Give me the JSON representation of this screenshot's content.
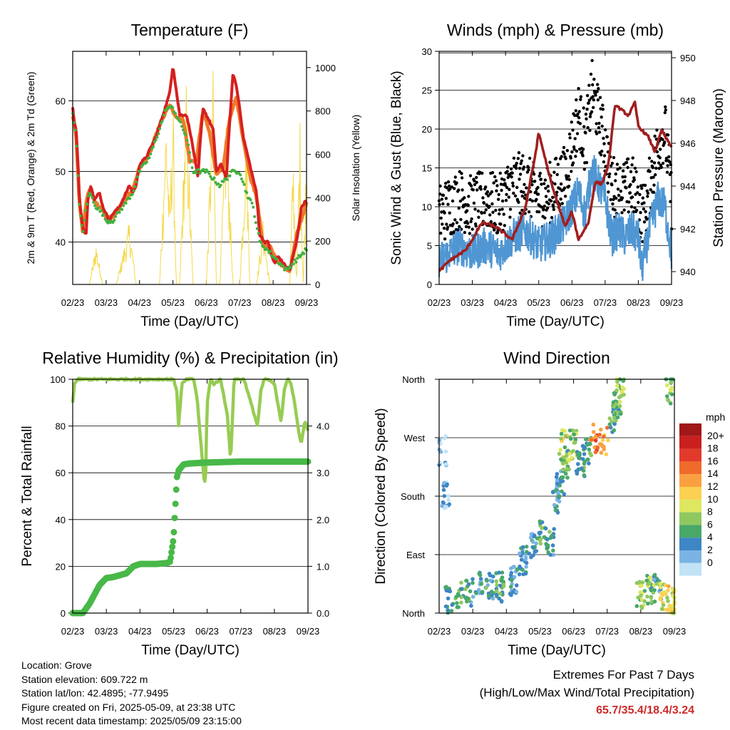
{
  "chart_data": [
    {
      "type": "line",
      "title": "Temperature (F)",
      "xlabel": "Time (Day/UTC)",
      "ylabel": "2m & 9m T (Red, Orange) & 2m Td (Green)",
      "ylabel_right": "Solar Insolation (Yellow)",
      "x_ticks": [
        "02/23",
        "03/23",
        "04/23",
        "05/23",
        "06/23",
        "07/23",
        "08/23",
        "09/23"
      ],
      "ylim": [
        34,
        67
      ],
      "y_ticks": [
        40,
        50,
        60
      ],
      "ylim_right": [
        0,
        1075
      ],
      "y_ticks_right": [
        0,
        200,
        400,
        600,
        800,
        1000
      ],
      "grid": true,
      "series": [
        {
          "name": "2m T",
          "color": "#d62020",
          "x": [
            0,
            0.05,
            0.1,
            0.15,
            0.2,
            0.3,
            0.4,
            0.45,
            0.55,
            0.65,
            0.8,
            0.9,
            1.0,
            1.1,
            1.2,
            1.4,
            1.6,
            1.7,
            1.8,
            1.9,
            2.0,
            2.2,
            2.3,
            2.5,
            2.7,
            2.9,
            3.0,
            3.2,
            3.4,
            3.5,
            3.65,
            3.75,
            3.8,
            3.9,
            4.0,
            4.1,
            4.2,
            4.3,
            4.45,
            4.6,
            4.7,
            4.8,
            4.9,
            5.0,
            5.1,
            5.2,
            5.35,
            5.5,
            5.6,
            5.75,
            5.85,
            5.95,
            6.05,
            6.15,
            6.3,
            6.5,
            6.7,
            6.85,
            7.0
          ],
          "values": [
            59,
            57,
            56,
            52,
            46,
            42,
            41,
            46,
            48,
            46,
            47,
            45,
            44,
            43,
            44,
            45,
            47,
            48,
            47,
            48,
            51,
            52,
            53,
            55,
            58,
            61,
            65,
            58,
            58,
            56,
            52,
            49,
            53,
            59,
            58,
            57,
            56,
            50,
            51,
            49,
            57,
            64,
            62,
            59,
            55,
            53,
            50,
            47,
            41,
            40,
            40,
            38,
            37,
            38,
            37,
            36,
            40,
            45,
            46
          ]
        },
        {
          "name": "9m T",
          "color": "#f07a28",
          "x": [
            0,
            0.1,
            0.2,
            0.3,
            0.4,
            0.5,
            0.7,
            0.9,
            1.0,
            1.2,
            1.5,
            1.8,
            2.0,
            2.3,
            2.6,
            2.9,
            3.1,
            3.3,
            3.5,
            3.7,
            3.9,
            4.1,
            4.3,
            4.5,
            4.7,
            4.9,
            5.1,
            5.3,
            5.5,
            5.7,
            5.9,
            6.1,
            6.3,
            6.5,
            6.7,
            7.0
          ],
          "values": [
            58,
            55.5,
            45.5,
            41.5,
            45.5,
            47.5,
            45.5,
            44.5,
            43.5,
            43.5,
            45.5,
            47.5,
            50.5,
            52.5,
            56.5,
            59.5,
            57.5,
            57.5,
            51.5,
            51.5,
            58.5,
            55.5,
            49.5,
            50.5,
            57.5,
            60.5,
            54.5,
            49.5,
            46.5,
            39.5,
            39.5,
            37.5,
            36.5,
            36,
            41,
            45.5
          ]
        },
        {
          "name": "2m Td",
          "color": "#44b040",
          "x": [
            0,
            0.1,
            0.2,
            0.3,
            0.4,
            0.5,
            0.7,
            0.9,
            1.0,
            1.2,
            1.5,
            1.8,
            2.0,
            2.3,
            2.6,
            2.8,
            3.0,
            3.2,
            3.4,
            3.6,
            3.8,
            4.0,
            4.2,
            4.4,
            4.6,
            4.8,
            5.0,
            5.2,
            5.4,
            5.6,
            5.8,
            6.0,
            6.2,
            6.4,
            6.6,
            6.8,
            7.0
          ],
          "values": [
            58,
            55,
            45,
            41,
            45,
            47,
            45,
            44,
            43,
            43,
            45,
            47,
            50,
            52,
            56,
            59,
            59,
            57,
            55,
            50,
            50,
            50,
            49,
            48,
            49,
            50,
            50,
            47,
            45,
            40,
            39,
            38,
            37,
            36,
            37,
            38,
            39
          ]
        },
        {
          "name": "Solar Insolation",
          "color": "#f5d84a",
          "axis": "right",
          "x": [
            0,
            0.5,
            0.7,
            0.9,
            1.3,
            1.7,
            1.9,
            2.2,
            2.6,
            2.8,
            2.9,
            3.0,
            3.1,
            3.2,
            3.4,
            3.6,
            3.8,
            4.0,
            4.2,
            4.3,
            4.4,
            4.6,
            4.8,
            5.0,
            5.2,
            5.3,
            5.5,
            5.7,
            5.9,
            6.1,
            6.3,
            6.5,
            6.6,
            6.7,
            6.8,
            6.9,
            7.0
          ],
          "values": [
            0,
            0,
            200,
            0,
            0,
            300,
            0,
            0,
            0,
            850,
            350,
            900,
            0,
            0,
            950,
            0,
            0,
            0,
            1000,
            0,
            0,
            850,
            0,
            0,
            800,
            0,
            0,
            300,
            0,
            0,
            0,
            0,
            650,
            0,
            800,
            0,
            700
          ]
        }
      ]
    },
    {
      "type": "line",
      "title": "Winds (mph) & Pressure (mb)",
      "xlabel": "Time (Day/UTC)",
      "ylabel": "Sonic Wind & Gust (Blue, Black)",
      "ylabel_right": "Station Pressure (Maroon)",
      "x_ticks": [
        "02/23",
        "03/23",
        "04/23",
        "05/23",
        "06/23",
        "07/23",
        "08/23",
        "09/23"
      ],
      "ylim": [
        0,
        30
      ],
      "y_ticks": [
        0,
        5,
        10,
        15,
        20,
        25,
        30
      ],
      "ylim_right": [
        939.4,
        950.3
      ],
      "y_ticks_right": [
        940,
        942,
        944,
        946,
        948,
        950
      ],
      "grid": true,
      "series": [
        {
          "name": "Sonic Wind",
          "color": "#4f96d3",
          "x": [
            0,
            0.3,
            0.6,
            1.0,
            1.4,
            1.8,
            2.2,
            2.6,
            3.0,
            3.4,
            3.8,
            4.2,
            4.4,
            4.6,
            5.0,
            5.2,
            5.4,
            5.6,
            5.8,
            6.0,
            6.1,
            6.2,
            6.4,
            6.6,
            6.8,
            7.0
          ],
          "values": [
            3,
            4,
            5,
            4,
            5,
            4,
            6,
            7,
            5,
            6,
            8,
            12,
            9,
            15,
            11,
            6,
            7,
            6,
            7,
            6,
            2,
            4,
            8,
            11,
            10,
            4
          ]
        },
        {
          "name": "Gust",
          "color": "#000000",
          "x": [
            0,
            0.3,
            0.6,
            1.0,
            1.4,
            1.8,
            2.2,
            2.6,
            3.0,
            3.4,
            3.8,
            4.2,
            4.4,
            4.6,
            5.0,
            5.2,
            5.4,
            5.6,
            5.8,
            6.0,
            6.2,
            6.4,
            6.6,
            6.8,
            7.0
          ],
          "values": [
            9,
            10,
            11,
            10,
            11,
            10,
            13,
            13,
            11,
            12,
            14,
            22,
            18,
            25,
            18,
            13,
            12,
            12,
            13,
            10,
            9,
            14,
            18,
            20,
            11
          ]
        },
        {
          "name": "Station Pressure",
          "color": "#a01f1f",
          "axis": "right",
          "x": [
            0,
            0.3,
            0.8,
            1.0,
            1.3,
            1.7,
            2.2,
            2.6,
            2.9,
            3.0,
            3.4,
            3.8,
            4.0,
            4.2,
            4.5,
            4.7,
            4.9,
            5.1,
            5.3,
            5.7,
            5.9,
            6.0,
            6.3,
            6.5,
            6.7,
            7.0
          ],
          "values": [
            940,
            940.5,
            941,
            941.5,
            942.3,
            942.1,
            941.5,
            943,
            945.5,
            946.5,
            944,
            942.1,
            942.8,
            941.5,
            942.3,
            944.2,
            944.1,
            945,
            947.8,
            947.3,
            947.9,
            946.8,
            946.3,
            945.6,
            946.6,
            945.8
          ]
        }
      ]
    },
    {
      "type": "line",
      "title": "Relative Humidity (%) & Precipitation (in)",
      "xlabel": "Time (Day/UTC)",
      "ylabel": "Percent & Total Rainfall",
      "x_ticks": [
        "02/23",
        "03/23",
        "04/23",
        "05/23",
        "06/23",
        "07/23",
        "08/23",
        "09/23"
      ],
      "ylim": [
        0,
        100
      ],
      "y_ticks": [
        0,
        20,
        40,
        60,
        80,
        100
      ],
      "ylim_right": [
        0,
        5
      ],
      "y_ticks_right": [
        "0.0",
        "1.0",
        "2.0",
        "3.0",
        "4.0"
      ],
      "grid": true,
      "series": [
        {
          "name": "Relative Humidity",
          "color": "#96cc52",
          "x": [
            0,
            0.05,
            0.15,
            0.3,
            3.0,
            3.1,
            3.15,
            3.25,
            3.4,
            3.6,
            3.7,
            3.8,
            3.9,
            3.95,
            4.0,
            4.1,
            4.2,
            4.4,
            4.6,
            4.7,
            4.8,
            4.9,
            5.1,
            5.3,
            5.5,
            5.6,
            5.7,
            5.8,
            6.0,
            6.1,
            6.2,
            6.3,
            6.4,
            6.5,
            6.6,
            6.7,
            6.8,
            6.9,
            7.0
          ],
          "values": [
            90,
            98,
            100,
            100,
            100,
            95,
            80,
            98,
            100,
            100,
            92,
            75,
            58,
            55,
            90,
            100,
            98,
            100,
            85,
            65,
            100,
            100,
            100,
            90,
            80,
            95,
            100,
            100,
            98,
            90,
            82,
            96,
            100,
            98,
            90,
            80,
            72,
            82,
            78
          ]
        },
        {
          "name": "Total Rainfall",
          "color": "#48b848",
          "axis": "right",
          "x": [
            0,
            0.3,
            0.5,
            0.8,
            1.0,
            1.2,
            1.6,
            1.8,
            2.0,
            2.5,
            2.8,
            2.9,
            3.0,
            3.1,
            3.15,
            3.3,
            3.5,
            4.0,
            5.0,
            6.0,
            7.0
          ],
          "values": [
            0,
            0,
            0.2,
            0.6,
            0.75,
            0.77,
            0.85,
            1.0,
            1.05,
            1.05,
            1.07,
            1.1,
            1.6,
            2.9,
            3.05,
            3.18,
            3.2,
            3.22,
            3.24,
            3.24,
            3.24
          ]
        }
      ]
    },
    {
      "type": "scatter",
      "title": "Wind Direction",
      "xlabel": "Time (Day/UTC)",
      "ylabel": "Direction (Colored By Speed)",
      "x_ticks": [
        "02/23",
        "03/23",
        "04/23",
        "05/23",
        "06/23",
        "07/23",
        "08/23",
        "09/23"
      ],
      "y_ticks": [
        "North",
        "East",
        "South",
        "West",
        "North"
      ],
      "ylim": [
        0,
        360
      ],
      "colorbar": {
        "title": "mph",
        "labels": [
          "20+",
          "18",
          "16",
          "14",
          "12",
          "10",
          "8",
          "6",
          "4",
          "2",
          "0"
        ],
        "colors": [
          "#a01818",
          "#c91f1f",
          "#e23a2a",
          "#f06a2a",
          "#fba040",
          "#fcd050",
          "#dde860",
          "#90c860",
          "#48a868",
          "#3e86c4",
          "#7ab4e4",
          "#c2e2f6"
        ]
      },
      "clusters": [
        {
          "x": 0.1,
          "dir": 250,
          "speed": 3
        },
        {
          "x": 0.2,
          "dir": 180,
          "speed": 3
        },
        {
          "x": 0.3,
          "dir": 20,
          "speed": 6
        },
        {
          "x": 0.6,
          "dir": 30,
          "speed": 7
        },
        {
          "x": 0.9,
          "dir": 30,
          "speed": 6
        },
        {
          "x": 1.2,
          "dir": 40,
          "speed": 5
        },
        {
          "x": 1.5,
          "dir": 40,
          "speed": 6
        },
        {
          "x": 1.8,
          "dir": 40,
          "speed": 7
        },
        {
          "x": 2.2,
          "dir": 50,
          "speed": 5
        },
        {
          "x": 2.5,
          "dir": 80,
          "speed": 5
        },
        {
          "x": 2.8,
          "dir": 100,
          "speed": 5
        },
        {
          "x": 3.1,
          "dir": 120,
          "speed": 7
        },
        {
          "x": 3.3,
          "dir": 110,
          "speed": 6
        },
        {
          "x": 3.5,
          "dir": 170,
          "speed": 5
        },
        {
          "x": 3.6,
          "dir": 200,
          "speed": 5
        },
        {
          "x": 3.7,
          "dir": 260,
          "speed": 10
        },
        {
          "x": 3.75,
          "dir": 230,
          "speed": 8
        },
        {
          "x": 4.0,
          "dir": 260,
          "speed": 9
        },
        {
          "x": 4.2,
          "dir": 230,
          "speed": 7
        },
        {
          "x": 4.4,
          "dir": 250,
          "speed": 6
        },
        {
          "x": 4.6,
          "dir": 270,
          "speed": 17
        },
        {
          "x": 4.9,
          "dir": 265,
          "speed": 15
        },
        {
          "x": 5.2,
          "dir": 300,
          "speed": 7
        },
        {
          "x": 5.3,
          "dir": 320,
          "speed": 8
        },
        {
          "x": 5.4,
          "dir": 355,
          "speed": 9
        },
        {
          "x": 6.0,
          "dir": 30,
          "speed": 9
        },
        {
          "x": 6.3,
          "dir": 35,
          "speed": 8
        },
        {
          "x": 6.5,
          "dir": 40,
          "speed": 6
        },
        {
          "x": 6.7,
          "dir": 25,
          "speed": 11
        },
        {
          "x": 6.85,
          "dir": 345,
          "speed": 9
        },
        {
          "x": 6.95,
          "dir": 20,
          "speed": 12
        }
      ]
    }
  ],
  "info": {
    "location": "Location: Grove",
    "elevation": "Station elevation: 609.722 m",
    "latlon": "Station lat/lon: 42.4895; -77.9495",
    "created": "Figure created on Fri, 2025-05-09, at 23:38 UTC",
    "recent": "Most recent data timestamp: 2025/05/09 23:15:00"
  },
  "extremes": {
    "line1": "Extremes For Past 7 Days",
    "line2": "(High/Low/Max Wind/Total Precipitation)",
    "values": "65.7/35.4/18.4/3.24"
  }
}
